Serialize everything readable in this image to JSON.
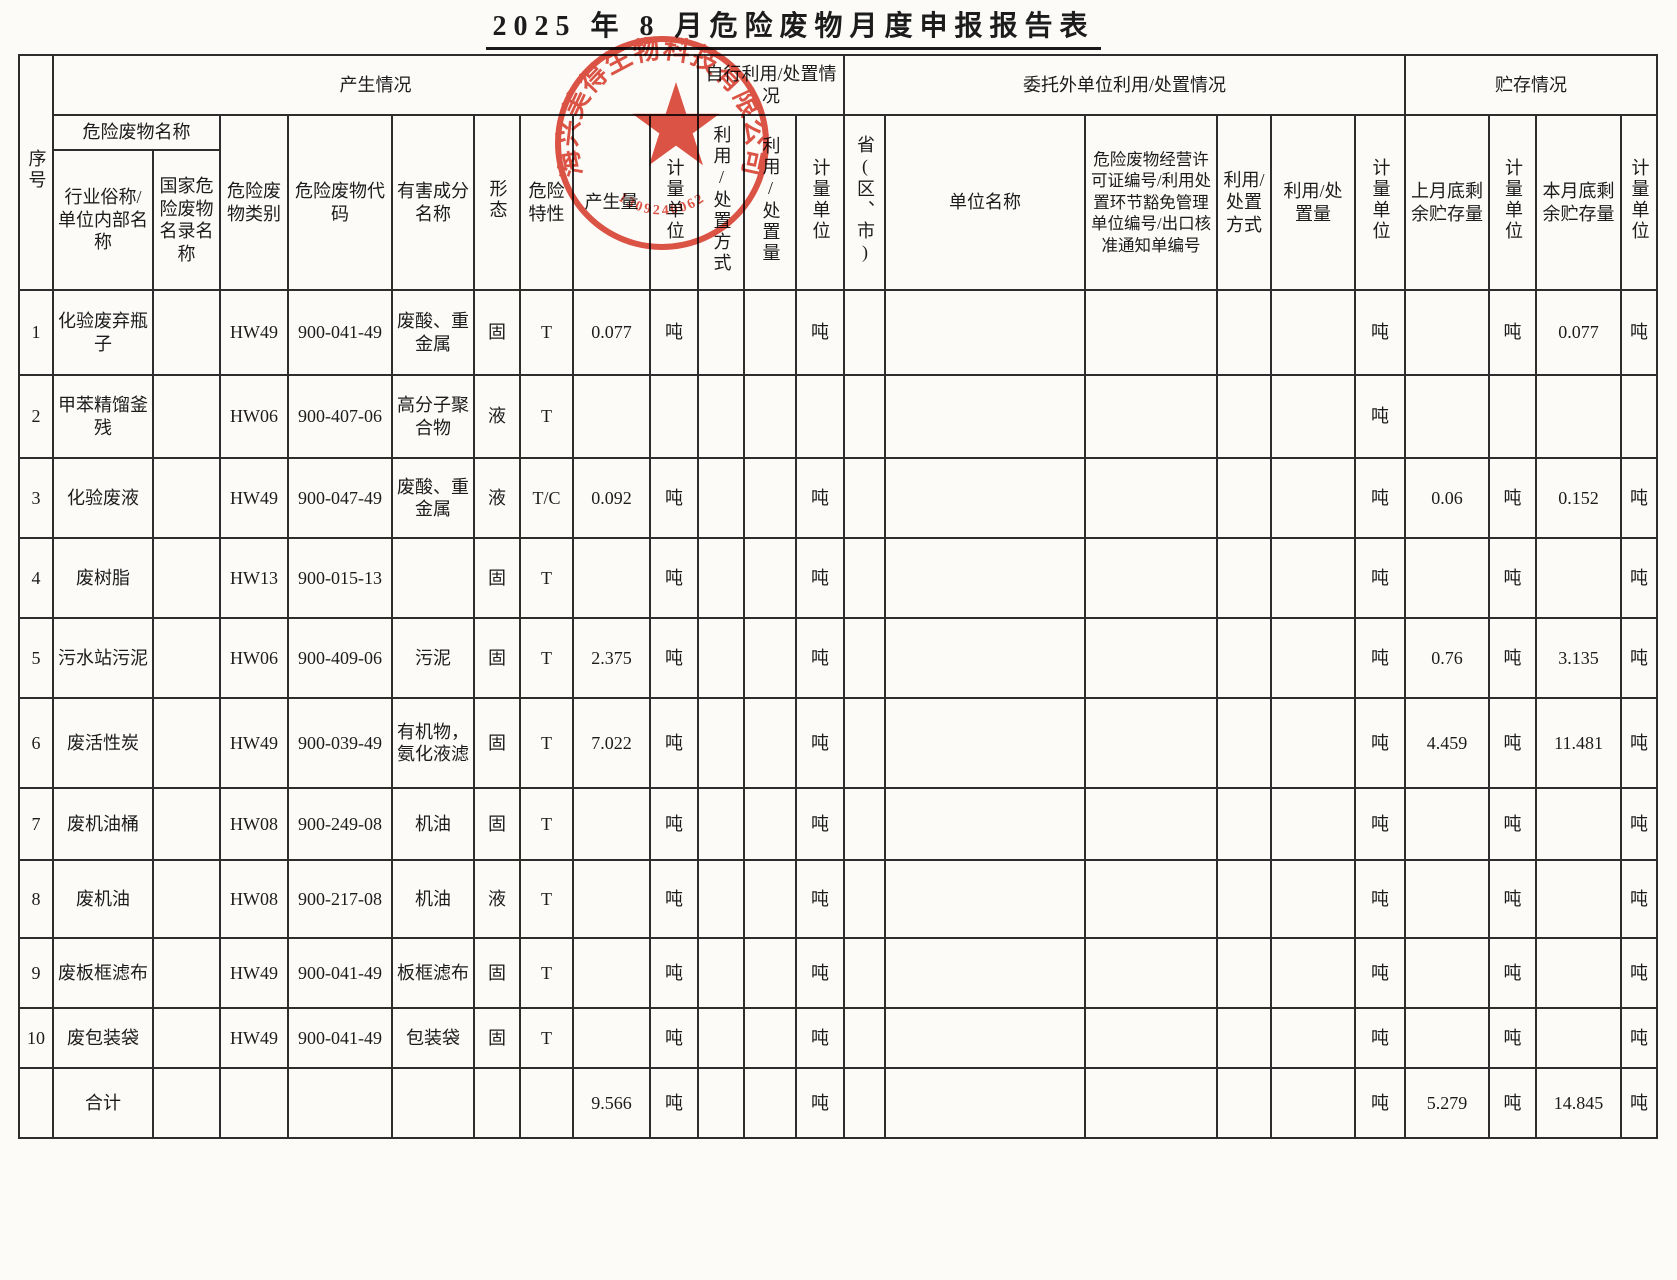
{
  "title": "2025 年 8 月危险废物月度申报报告表",
  "stamp": {
    "company_name": "海兴美得生物科技有限公司",
    "serial_number": "1309240062",
    "color": "#d93a2b"
  },
  "table": {
    "headers": {
      "seq": "序号",
      "production_group": "产生情况",
      "self_disposal_group": "自行利用/处置情况",
      "entrusted_group": "委托外单位利用/处置情况",
      "storage_group": "贮存情况",
      "waste_name_group": "危险废物名称",
      "industry_name": "行业俗称/单位内部名称",
      "national_name": "国家危险废物名录名称",
      "category": "危险废物类别",
      "code": "危险废物代码",
      "harmful_component": "有害成分名称",
      "form": "形态",
      "hazard_trait": "危险特性",
      "gen_amount": "产生量",
      "gen_unit": "计量单位",
      "self_method": "利用/处置方式",
      "self_amount": "利用/处置量",
      "self_unit": "计量单位",
      "province": "省(区、市)",
      "company_name": "单位名称",
      "license": "危险废物经营许可证编号/利用处置环节豁免管理单位编号/出口核准通知单编号",
      "ent_method": "利用/处置方式",
      "ent_amount": "利用/处置量",
      "ent_unit": "计量单位",
      "storage_last": "上月底剩余贮存量",
      "storage_last_unit": "计量单位",
      "storage_this": "本月底剩余贮存量",
      "storage_this_unit": "计量单位"
    },
    "rows": [
      [
        "1",
        "化验废弃瓶子",
        "",
        "HW49",
        "900-041-49",
        "废酸、重金属",
        "固",
        "T",
        "0.077",
        "吨",
        "",
        "",
        "吨",
        "",
        "",
        "",
        "",
        "",
        "吨",
        "",
        "吨",
        "0.077",
        "吨"
      ],
      [
        "2",
        "甲苯精馏釜残",
        "",
        "HW06",
        "900-407-06",
        "高分子聚合物",
        "液",
        "T",
        "",
        "",
        "",
        "",
        "",
        "",
        "",
        "",
        "",
        "",
        "吨",
        "",
        "",
        "",
        ""
      ],
      [
        "3",
        "化验废液",
        "",
        "HW49",
        "900-047-49",
        "废酸、重金属",
        "液",
        "T/C",
        "0.092",
        "吨",
        "",
        "",
        "吨",
        "",
        "",
        "",
        "",
        "",
        "吨",
        "0.06",
        "吨",
        "0.152",
        "吨"
      ],
      [
        "4",
        "废树脂",
        "",
        "HW13",
        "900-015-13",
        "",
        "固",
        "T",
        "",
        "吨",
        "",
        "",
        "吨",
        "",
        "",
        "",
        "",
        "",
        "吨",
        "",
        "吨",
        "",
        "吨"
      ],
      [
        "5",
        "污水站污泥",
        "",
        "HW06",
        "900-409-06",
        "污泥",
        "固",
        "T",
        "2.375",
        "吨",
        "",
        "",
        "吨",
        "",
        "",
        "",
        "",
        "",
        "吨",
        "0.76",
        "吨",
        "3.135",
        "吨"
      ],
      [
        "6",
        "废活性炭",
        "",
        "HW49",
        "900-039-49",
        "有机物，氨化液滤",
        "固",
        "T",
        "7.022",
        "吨",
        "",
        "",
        "吨",
        "",
        "",
        "",
        "",
        "",
        "吨",
        "4.459",
        "吨",
        "11.481",
        "吨"
      ],
      [
        "7",
        "废机油桶",
        "",
        "HW08",
        "900-249-08",
        "机油",
        "固",
        "T",
        "",
        "吨",
        "",
        "",
        "吨",
        "",
        "",
        "",
        "",
        "",
        "吨",
        "",
        "吨",
        "",
        "吨"
      ],
      [
        "8",
        "废机油",
        "",
        "HW08",
        "900-217-08",
        "机油",
        "液",
        "T",
        "",
        "吨",
        "",
        "",
        "吨",
        "",
        "",
        "",
        "",
        "",
        "吨",
        "",
        "吨",
        "",
        "吨"
      ],
      [
        "9",
        "废板框滤布",
        "",
        "HW49",
        "900-041-49",
        "板框滤布",
        "固",
        "T",
        "",
        "吨",
        "",
        "",
        "吨",
        "",
        "",
        "",
        "",
        "",
        "吨",
        "",
        "吨",
        "",
        "吨"
      ],
      [
        "10",
        "废包装袋",
        "",
        "HW49",
        "900-041-49",
        "包装袋",
        "固",
        "T",
        "",
        "吨",
        "",
        "",
        "吨",
        "",
        "",
        "",
        "",
        "",
        "吨",
        "",
        "吨",
        "",
        "吨"
      ]
    ],
    "total_row": [
      "",
      "合计",
      "",
      "",
      "",
      "",
      "",
      "",
      "9.566",
      "吨",
      "",
      "",
      "吨",
      "",
      "",
      "",
      "",
      "",
      "吨",
      "5.279",
      "吨",
      "14.845",
      "吨"
    ]
  }
}
